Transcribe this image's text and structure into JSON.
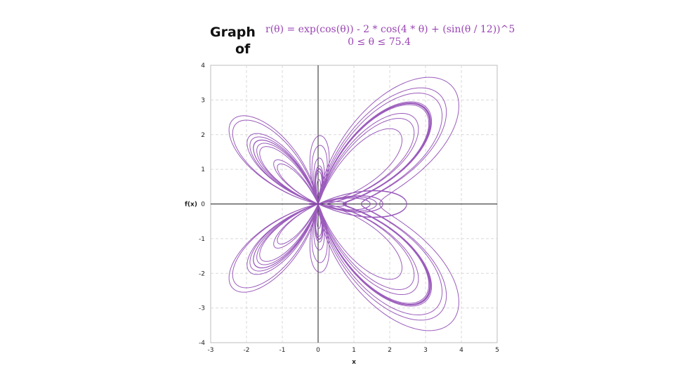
{
  "chart_data": {
    "type": "line",
    "title_left": [
      "Graph",
      "of"
    ],
    "title_formula": "r(θ) = exp(cos(θ)) - 2 * cos(4 * θ) + (sin(θ / 12))^5",
    "subtitle": "0 ≤ θ ≤ 75.4",
    "xlabel": "x",
    "ylabel": "f(x)",
    "xlim": [
      -3,
      5
    ],
    "ylim": [
      -4,
      4
    ],
    "xticks": [
      -3,
      -2,
      -1,
      0,
      1,
      2,
      3,
      4,
      5
    ],
    "yticks": [
      -4,
      -3,
      -2,
      -1,
      0,
      1,
      2,
      3,
      4
    ],
    "grid": true,
    "theta_range": [
      0,
      75.4
    ],
    "curve": "polar butterfly curve r(θ) = exp(cos θ) − 2cos(4θ) + sin(θ/12)^5",
    "line_color": "#8a3fb0"
  }
}
